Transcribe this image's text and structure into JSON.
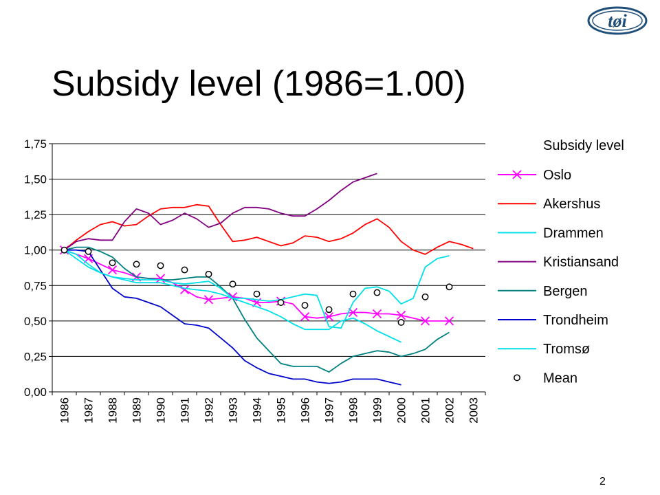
{
  "slide": {
    "title": "Subsidy level (1986=1.00)",
    "page_number": "2",
    "logo_text": "tøi"
  },
  "chart_data": {
    "type": "line",
    "title": "",
    "xlabel": "",
    "ylabel": "",
    "legend_title": "Subsidy level",
    "legend_position": "right",
    "grid": "horizontal",
    "ylim": [
      0,
      1.75
    ],
    "yticks": [
      "0,00",
      "0,25",
      "0,50",
      "0,75",
      "1,00",
      "1,25",
      "1,50",
      "1,75"
    ],
    "categories": [
      "1986",
      "1987",
      "1988",
      "1989",
      "1990",
      "1991",
      "1992",
      "1993",
      "1994",
      "1995",
      "1996",
      "1997",
      "1998",
      "1999",
      "2000",
      "2001",
      "2002",
      "2003"
    ],
    "series": [
      {
        "name": "Oslo",
        "color": "#ff00ff",
        "marker": "x",
        "x": [
          1986,
          1986.5,
          1987,
          1987.5,
          1988,
          1988.5,
          1989,
          1989.5,
          1990,
          1990.5,
          1991,
          1991.5,
          1992,
          1992.5,
          1993,
          1993.5,
          1994,
          1994.5,
          1995,
          1995.5,
          1996,
          1996.5,
          1997,
          1997.5,
          1998,
          1998.5,
          1999,
          1999.5,
          2000,
          2000.5,
          2001,
          2001.5,
          2002
        ],
        "y": [
          1.0,
          0.97,
          0.94,
          0.9,
          0.86,
          0.84,
          0.81,
          0.8,
          0.8,
          0.77,
          0.72,
          0.67,
          0.65,
          0.66,
          0.67,
          0.66,
          0.63,
          0.63,
          0.64,
          0.62,
          0.53,
          0.52,
          0.53,
          0.55,
          0.56,
          0.56,
          0.55,
          0.55,
          0.54,
          0.52,
          0.5,
          0.5,
          0.5
        ],
        "marker_x": [
          1986,
          1987,
          1988,
          1989,
          1990,
          1991,
          1992,
          1993,
          1994,
          1995,
          1996,
          1997,
          1998,
          1999,
          2000,
          2001,
          2002
        ]
      },
      {
        "name": "Akershus",
        "color": "#ff0000",
        "x": [
          1986,
          1986.5,
          1987,
          1987.5,
          1988,
          1988.5,
          1989,
          1989.5,
          1990,
          1990.5,
          1991,
          1991.5,
          1992,
          1992.5,
          1993,
          1993.5,
          1994,
          1994.5,
          1995,
          1995.5,
          1996,
          1996.5,
          1997,
          1997.5,
          1998,
          1998.5,
          1999,
          1999.5,
          2000,
          2000.5,
          2001,
          2001.5,
          2002,
          2002.5,
          2003
        ],
        "y": [
          1.0,
          1.07,
          1.13,
          1.18,
          1.2,
          1.17,
          1.18,
          1.24,
          1.29,
          1.3,
          1.3,
          1.32,
          1.31,
          1.18,
          1.06,
          1.07,
          1.09,
          1.06,
          1.03,
          1.05,
          1.1,
          1.09,
          1.06,
          1.08,
          1.12,
          1.18,
          1.22,
          1.16,
          1.06,
          1.0,
          0.97,
          1.02,
          1.06,
          1.04,
          1.01
        ]
      },
      {
        "name": "Drammen",
        "color": "#00e0e8",
        "x": [
          1986,
          1986.5,
          1987,
          1987.5,
          1988,
          1988.5,
          1989,
          1989.5,
          1990,
          1990.5,
          1991,
          1991.5,
          1992,
          1992.5,
          1993,
          1993.5,
          1994,
          1994.5,
          1995,
          1995.5,
          1996,
          1996.5,
          1997,
          1997.5,
          1998,
          1998.5,
          1999,
          1999.5,
          2000
        ],
        "y": [
          1.0,
          0.94,
          0.88,
          0.84,
          0.81,
          0.79,
          0.77,
          0.77,
          0.77,
          0.75,
          0.73,
          0.72,
          0.71,
          0.69,
          0.66,
          0.63,
          0.6,
          0.57,
          0.53,
          0.48,
          0.44,
          0.44,
          0.44,
          0.5,
          0.52,
          0.48,
          0.43,
          0.39,
          0.35
        ]
      },
      {
        "name": "Kristiansand",
        "color": "#800080",
        "x": [
          1986,
          1986.5,
          1987,
          1987.5,
          1988,
          1988.5,
          1989,
          1989.5,
          1990,
          1990.5,
          1991,
          1991.5,
          1992,
          1992.5,
          1993,
          1993.5,
          1994,
          1994.5,
          1995,
          1995.5,
          1996,
          1996.5,
          1997,
          1997.5,
          1998,
          1998.5,
          1999
        ],
        "y": [
          1.0,
          1.06,
          1.08,
          1.07,
          1.07,
          1.2,
          1.29,
          1.26,
          1.18,
          1.21,
          1.26,
          1.22,
          1.16,
          1.19,
          1.26,
          1.3,
          1.3,
          1.29,
          1.26,
          1.24,
          1.24,
          1.29,
          1.35,
          1.42,
          1.48,
          1.51,
          1.54
        ]
      },
      {
        "name": "Bergen",
        "color": "#008080",
        "x": [
          1986,
          1986.5,
          1987,
          1987.5,
          1988,
          1988.5,
          1989,
          1989.5,
          1990,
          1990.5,
          1991,
          1991.5,
          1992,
          1992.5,
          1993,
          1993.5,
          1994,
          1994.5,
          1995,
          1995.5,
          1996,
          1996.5,
          1997,
          1997.5,
          1998,
          1998.5,
          1999,
          1999.5,
          2000,
          2000.5,
          2001,
          2001.5,
          2002
        ],
        "y": [
          1.0,
          1.02,
          1.02,
          0.99,
          0.95,
          0.87,
          0.81,
          0.8,
          0.79,
          0.79,
          0.8,
          0.81,
          0.81,
          0.74,
          0.66,
          0.51,
          0.38,
          0.29,
          0.2,
          0.18,
          0.18,
          0.18,
          0.14,
          0.2,
          0.25,
          0.27,
          0.29,
          0.28,
          0.25,
          0.27,
          0.3,
          0.37,
          0.42
        ]
      },
      {
        "name": "Trondheim",
        "color": "#0000cc",
        "x": [
          1986,
          1986.5,
          1987,
          1987.5,
          1988,
          1988.5,
          1989,
          1989.5,
          1990,
          1990.5,
          1991,
          1991.5,
          1992,
          1992.5,
          1993,
          1993.5,
          1994,
          1994.5,
          1995,
          1995.5,
          1996,
          1996.5,
          1997,
          1997.5,
          1998,
          1998.5,
          1999,
          1999.5,
          2000
        ],
        "y": [
          1.0,
          1.0,
          0.99,
          0.86,
          0.73,
          0.67,
          0.66,
          0.63,
          0.6,
          0.54,
          0.48,
          0.47,
          0.45,
          0.38,
          0.31,
          0.22,
          0.17,
          0.13,
          0.11,
          0.09,
          0.09,
          0.07,
          0.06,
          0.07,
          0.09,
          0.09,
          0.09,
          0.07,
          0.05
        ]
      },
      {
        "name": "Tromsø",
        "color": "#00e0e8",
        "x": [
          1986,
          1986.5,
          1987,
          1987.5,
          1988,
          1988.5,
          1989,
          1989.5,
          1990,
          1990.5,
          1991,
          1991.5,
          1992,
          1992.5,
          1993,
          1993.5,
          1994,
          1994.5,
          1995,
          1995.5,
          1996,
          1996.5,
          1997,
          1997.5,
          1998,
          1998.5,
          1999,
          1999.5,
          2000,
          2000.5,
          2001,
          2001.5,
          2002
        ],
        "y": [
          1.0,
          0.97,
          0.9,
          0.84,
          0.81,
          0.8,
          0.79,
          0.79,
          0.79,
          0.77,
          0.76,
          0.77,
          0.78,
          0.73,
          0.66,
          0.66,
          0.65,
          0.64,
          0.65,
          0.67,
          0.69,
          0.68,
          0.46,
          0.45,
          0.63,
          0.73,
          0.74,
          0.71,
          0.62,
          0.66,
          0.88,
          0.94,
          0.96
        ]
      },
      {
        "name": "Mean",
        "color": "#000000",
        "marker": "circle",
        "line": false,
        "x": [
          1986,
          1987,
          1988,
          1989,
          1990,
          1991,
          1992,
          1993,
          1994,
          1995,
          1996,
          1997,
          1998,
          1999,
          2000,
          2001,
          2002
        ],
        "y": [
          1.0,
          0.99,
          0.91,
          0.9,
          0.89,
          0.86,
          0.83,
          0.76,
          0.69,
          0.63,
          0.61,
          0.58,
          0.69,
          0.7,
          0.49,
          0.67,
          0.74
        ]
      }
    ]
  }
}
